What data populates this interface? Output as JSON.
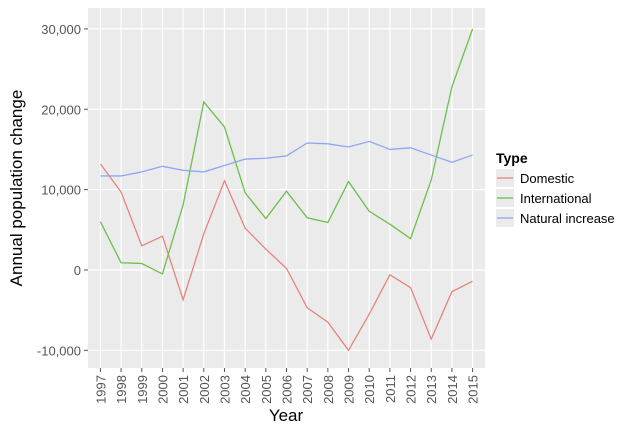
{
  "chart_data": {
    "type": "line",
    "x_label": "Year",
    "y_label": "Annual population change",
    "legend_title": "Type",
    "x": [
      1997,
      1998,
      1999,
      2000,
      2001,
      2002,
      2003,
      2004,
      2005,
      2006,
      2007,
      2008,
      2009,
      2010,
      2011,
      2012,
      2013,
      2014,
      2015
    ],
    "series": [
      {
        "name": "Domestic",
        "color": "#e8847a",
        "values": [
          13200,
          9700,
          3000,
          4200,
          -3700,
          4500,
          11100,
          5200,
          2600,
          200,
          -4700,
          -6500,
          -10000,
          -5500,
          -600,
          -2200,
          -8600,
          -2700,
          -1400
        ]
      },
      {
        "name": "International",
        "color": "#6cbf4a",
        "values": [
          6000,
          900,
          800,
          -500,
          8100,
          20900,
          17800,
          9600,
          6400,
          9800,
          6500,
          5900,
          11000,
          7300,
          5700,
          3900,
          11200,
          22800,
          30000
        ]
      },
      {
        "name": "Natural increase",
        "color": "#8ea6f7",
        "values": [
          11700,
          11700,
          12200,
          12900,
          12400,
          12200,
          13000,
          13800,
          13900,
          14200,
          15800,
          15700,
          15300,
          16000,
          15000,
          15200,
          14300,
          13400,
          14300
        ]
      }
    ],
    "xlim": [
      1996.4,
      2015.6
    ],
    "xticks": [
      1997,
      1998,
      1999,
      2000,
      2001,
      2002,
      2003,
      2004,
      2005,
      2006,
      2007,
      2008,
      2009,
      2010,
      2011,
      2012,
      2013,
      2014,
      2015
    ],
    "ylim": [
      -12200,
      32600
    ],
    "yticks": [
      {
        "value": -10000,
        "label": "-10,000"
      },
      {
        "value": 0,
        "label": "0"
      },
      {
        "value": 10000,
        "label": "10,000"
      },
      {
        "value": 20000,
        "label": "20,000"
      },
      {
        "value": 30000,
        "label": "30,000"
      }
    ],
    "grid": true,
    "legend_position": "right"
  }
}
